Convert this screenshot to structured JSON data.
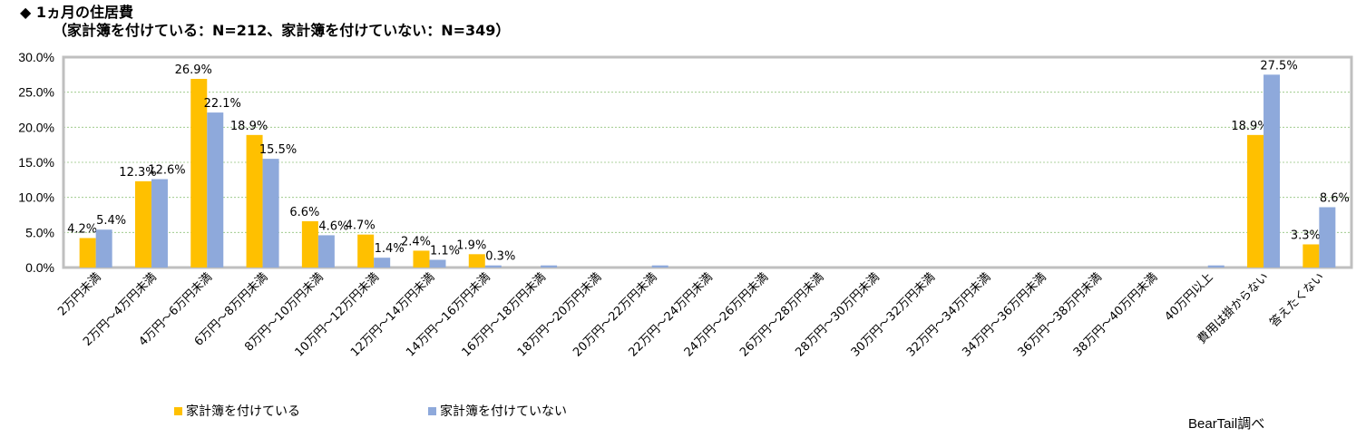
{
  "title": {
    "line1": "◆ 1ヵ月の住居費",
    "line2": "（家計簿を付けている：N=212、家計簿を付けていない：N=349）"
  },
  "source": "BearTail調べ",
  "colors": {
    "series1": "#FFC000",
    "series2": "#8EA9DB",
    "frame": "#BFBFBF",
    "grid": "#92C47D"
  },
  "chart_data": {
    "type": "bar",
    "title": "1ヵ月の住居費",
    "ylim": [
      0,
      30
    ],
    "yticks": [
      "0.0%",
      "5.0%",
      "10.0%",
      "15.0%",
      "20.0%",
      "25.0%",
      "30.0%"
    ],
    "grid": true,
    "legend_position": "bottom-left",
    "categories": [
      "2万円未満",
      "2万円～4万円未満",
      "4万円～6万円未満",
      "6万円～8万円未満",
      "8万円～10万円未満",
      "10万円～12万円未満",
      "12万円～14万円未満",
      "14万円～16万円未満",
      "16万円～18万円未満",
      "18万円～20万円未満",
      "20万円～22万円未満",
      "22万円～24万円未満",
      "24万円～26万円未満",
      "26万円～28万円未満",
      "28万円～30万円未満",
      "30万円～32万円未満",
      "32万円～34万円未満",
      "34万円～36万円未満",
      "36万円～38万円未満",
      "38万円～40万円未満",
      "40万円以上",
      "費用は掛からない",
      "答えたくない"
    ],
    "series": [
      {
        "name": "家計簿を付けている",
        "values": [
          4.2,
          12.3,
          26.9,
          18.9,
          6.6,
          4.7,
          2.4,
          1.9,
          0,
          0,
          0,
          0,
          0,
          0,
          0,
          0,
          0,
          0,
          0,
          0,
          0,
          18.9,
          3.3
        ],
        "labels": [
          "4.2%",
          "12.3%",
          "26.9%",
          "18.9%",
          "6.6%",
          "4.7%",
          "2.4%",
          "1.9%",
          "",
          "",
          "",
          "",
          "",
          "",
          "",
          "",
          "",
          "",
          "",
          "",
          "",
          "18.9%",
          "3.3%"
        ]
      },
      {
        "name": "家計簿を付けていない",
        "values": [
          5.4,
          12.6,
          22.1,
          15.5,
          4.6,
          1.4,
          1.1,
          0.3,
          0.3,
          0,
          0.3,
          0,
          0,
          0,
          0,
          0,
          0,
          0,
          0,
          0,
          0.3,
          27.5,
          8.6
        ],
        "labels": [
          "5.4%",
          "12.6%",
          "22.1%",
          "15.5%",
          "4.6%",
          "1.4%",
          "1.1%",
          "0.3%",
          "",
          "",
          "",
          "",
          "",
          "",
          "",
          "",
          "",
          "",
          "",
          "",
          "",
          "27.5%",
          "8.6%"
        ]
      }
    ]
  }
}
